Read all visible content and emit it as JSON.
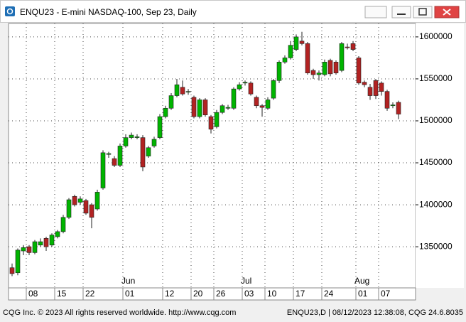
{
  "window": {
    "title": "ENQU23 - E-mini NASDAQ-100, Sep 23, Daily"
  },
  "footer": {
    "left": "CQG Inc. © 2023 All rights reserved worldwide. http://www.cqg.com",
    "right": "ENQU23,D | 08/12/2023 12:38:08, CQG 24.6.8035"
  },
  "chart_data": {
    "type": "candlestick",
    "up_color": "#00b400",
    "down_color": "#b22222",
    "grid": true,
    "ylim": [
      1301000,
      1616000
    ],
    "yticks": [
      1350000,
      1400000,
      1450000,
      1500000,
      1550000,
      1600000
    ],
    "categories": [
      null,
      null,
      null,
      "08",
      null,
      null,
      null,
      null,
      "15",
      null,
      null,
      null,
      null,
      "22",
      null,
      null,
      null,
      null,
      null,
      null,
      "01",
      null,
      null,
      null,
      null,
      null,
      null,
      "12",
      null,
      null,
      null,
      null,
      "20",
      null,
      null,
      null,
      "26",
      null,
      null,
      null,
      null,
      "03",
      null,
      null,
      null,
      "10",
      null,
      null,
      null,
      null,
      "17",
      null,
      null,
      null,
      null,
      "24",
      null,
      null,
      null,
      null,
      null,
      "01",
      null,
      null,
      null,
      "07",
      null,
      null,
      null
    ],
    "month_labels": [
      null,
      null,
      null,
      null,
      null,
      null,
      null,
      null,
      null,
      null,
      null,
      null,
      null,
      null,
      null,
      null,
      null,
      null,
      null,
      null,
      "Jun",
      null,
      null,
      null,
      null,
      null,
      null,
      null,
      null,
      null,
      null,
      null,
      null,
      null,
      null,
      null,
      null,
      null,
      null,
      null,
      null,
      "Jul",
      null,
      null,
      null,
      null,
      null,
      null,
      null,
      null,
      null,
      null,
      null,
      null,
      null,
      null,
      null,
      null,
      null,
      null,
      null,
      "Aug",
      null,
      null,
      null,
      null,
      null,
      null,
      null
    ],
    "open": [
      1325000,
      1319000,
      1345000,
      1350000,
      1343000,
      1352000,
      1360000,
      1352000,
      1362000,
      1368000,
      1385000,
      1410000,
      1403000,
      1405000,
      1400000,
      1395000,
      1420000,
      1460000,
      1455000,
      1447000,
      1470000,
      1480000,
      1480000,
      1480000,
      1458000,
      1470000,
      1480000,
      1505000,
      1515000,
      1530000,
      1540000,
      1535000,
      1528000,
      1505000,
      1525000,
      1505000,
      1493000,
      1510000,
      1515000,
      1515000,
      1538000,
      1545000,
      1545000,
      1528000,
      1518000,
      1515000,
      1527000,
      1548000,
      1570000,
      1575000,
      1585000,
      1595000,
      1592000,
      1560000,
      1555000,
      1555000,
      1572000,
      1570000,
      1560000,
      1588000,
      1592000,
      1575000,
      1546000,
      1540000,
      1548000,
      1545000,
      1535000,
      1518000,
      1522000
    ],
    "high": [
      1330000,
      1348000,
      1352000,
      1352000,
      1358000,
      1360000,
      1362000,
      1366000,
      1370000,
      1388000,
      1408000,
      1412000,
      1410000,
      1407000,
      1402000,
      1418000,
      1465000,
      1463000,
      1458000,
      1473000,
      1484000,
      1486000,
      1484000,
      1483000,
      1470000,
      1481000,
      1508000,
      1518000,
      1533000,
      1550000,
      1548000,
      1538000,
      1530000,
      1527000,
      1527000,
      1507000,
      1513000,
      1520000,
      1519000,
      1540000,
      1546000,
      1548000,
      1547000,
      1530000,
      1520000,
      1528000,
      1550000,
      1572000,
      1578000,
      1595000,
      1603000,
      1606000,
      1594000,
      1562000,
      1560000,
      1573000,
      1574000,
      1572000,
      1594000,
      1592000,
      1595000,
      1577000,
      1548000,
      1544000,
      1550000,
      1547000,
      1537000,
      1522000,
      1524000
    ],
    "low": [
      1315000,
      1316000,
      1340000,
      1340000,
      1341000,
      1350000,
      1345000,
      1350000,
      1360000,
      1366000,
      1383000,
      1398000,
      1400000,
      1388000,
      1372000,
      1393000,
      1418000,
      1456000,
      1445000,
      1445000,
      1468000,
      1478000,
      1478000,
      1440000,
      1456000,
      1468000,
      1478000,
      1503000,
      1513000,
      1528000,
      1530000,
      1531000,
      1503000,
      1503000,
      1505000,
      1485000,
      1491000,
      1508000,
      1513000,
      1513000,
      1536000,
      1542000,
      1530000,
      1515000,
      1505000,
      1513000,
      1525000,
      1545000,
      1568000,
      1573000,
      1583000,
      1590000,
      1555000,
      1550000,
      1548000,
      1553000,
      1553000,
      1555000,
      1558000,
      1585000,
      1583000,
      1543000,
      1540000,
      1525000,
      1526000,
      1530000,
      1512000,
      1515000,
      1502000
    ],
    "close": [
      1318000,
      1346000,
      1349000,
      1343000,
      1356000,
      1356000,
      1350000,
      1364000,
      1368000,
      1385000,
      1406000,
      1400000,
      1407000,
      1390000,
      1385000,
      1415000,
      1462000,
      1461000,
      1447000,
      1470000,
      1480000,
      1483000,
      1481000,
      1445000,
      1468000,
      1478000,
      1505000,
      1515000,
      1530000,
      1543000,
      1532000,
      1535000,
      1505000,
      1525000,
      1507000,
      1490000,
      1510000,
      1518000,
      1516000,
      1538000,
      1543000,
      1546000,
      1532000,
      1518000,
      1516000,
      1525000,
      1548000,
      1570000,
      1575000,
      1590000,
      1600000,
      1592000,
      1557000,
      1555000,
      1557000,
      1570000,
      1556000,
      1557000,
      1592000,
      1587000,
      1585000,
      1545000,
      1543000,
      1530000,
      1530000,
      1535000,
      1515000,
      1519000,
      1508000
    ]
  }
}
